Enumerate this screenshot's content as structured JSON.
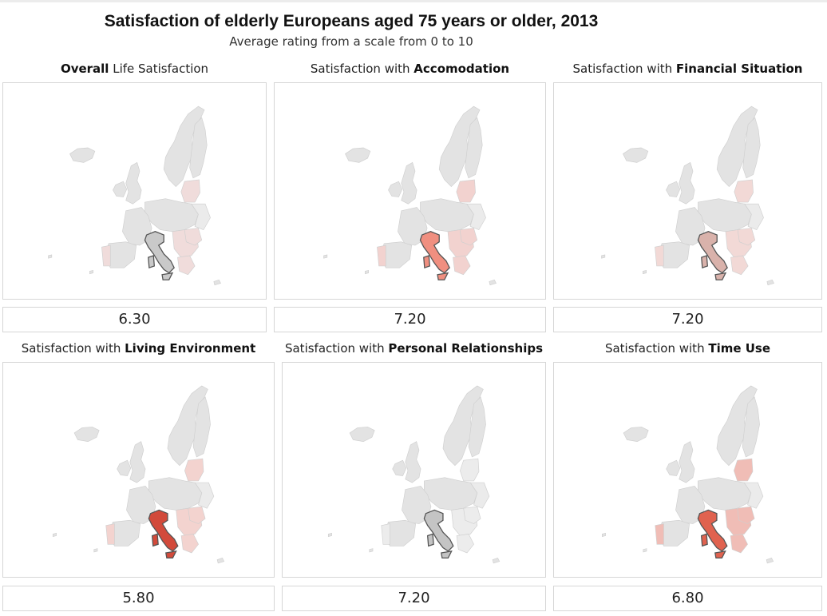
{
  "title": "Satisfaction of elderly Europeans aged 75 years or older, 2013",
  "subtitle": "Average rating from a scale from 0 to 10",
  "colors": {
    "base": "#e3e3e3",
    "tint_weak": "#f4d3d0",
    "tint_mid": "#efb3ad",
    "outline": "#555555"
  },
  "panels": [
    {
      "prefix": "",
      "bold": "Overall",
      "suffix": " Life Satisfaction",
      "value": "6.30",
      "italy_color": "#c9c9c9",
      "tint": "#f0dcdb"
    },
    {
      "prefix": "Satisfaction with ",
      "bold": "Accomodation",
      "suffix": "",
      "value": "7.20",
      "italy_color": "#f08f80",
      "tint": "#f2d2cf"
    },
    {
      "prefix": "Satisfaction with ",
      "bold": "Financial Situation",
      "suffix": "",
      "value": "7.20",
      "italy_color": "#d9b2ab",
      "tint": "#f2d9d6"
    },
    {
      "prefix": "Satisfaction with ",
      "bold": "Living Environment",
      "suffix": "",
      "value": "5.80",
      "italy_color": "#d24a3b",
      "tint": "#f3d3cf"
    },
    {
      "prefix": "Satisfaction with ",
      "bold": "Personal Relationships",
      "suffix": "",
      "value": "7.20",
      "italy_color": "#c4c4c4",
      "tint": "#ececec"
    },
    {
      "prefix": "Satisfaction with ",
      "bold": "Time Use",
      "suffix": "",
      "value": "6.80",
      "italy_color": "#e0624f",
      "tint": "#f0bdb6"
    }
  ]
}
